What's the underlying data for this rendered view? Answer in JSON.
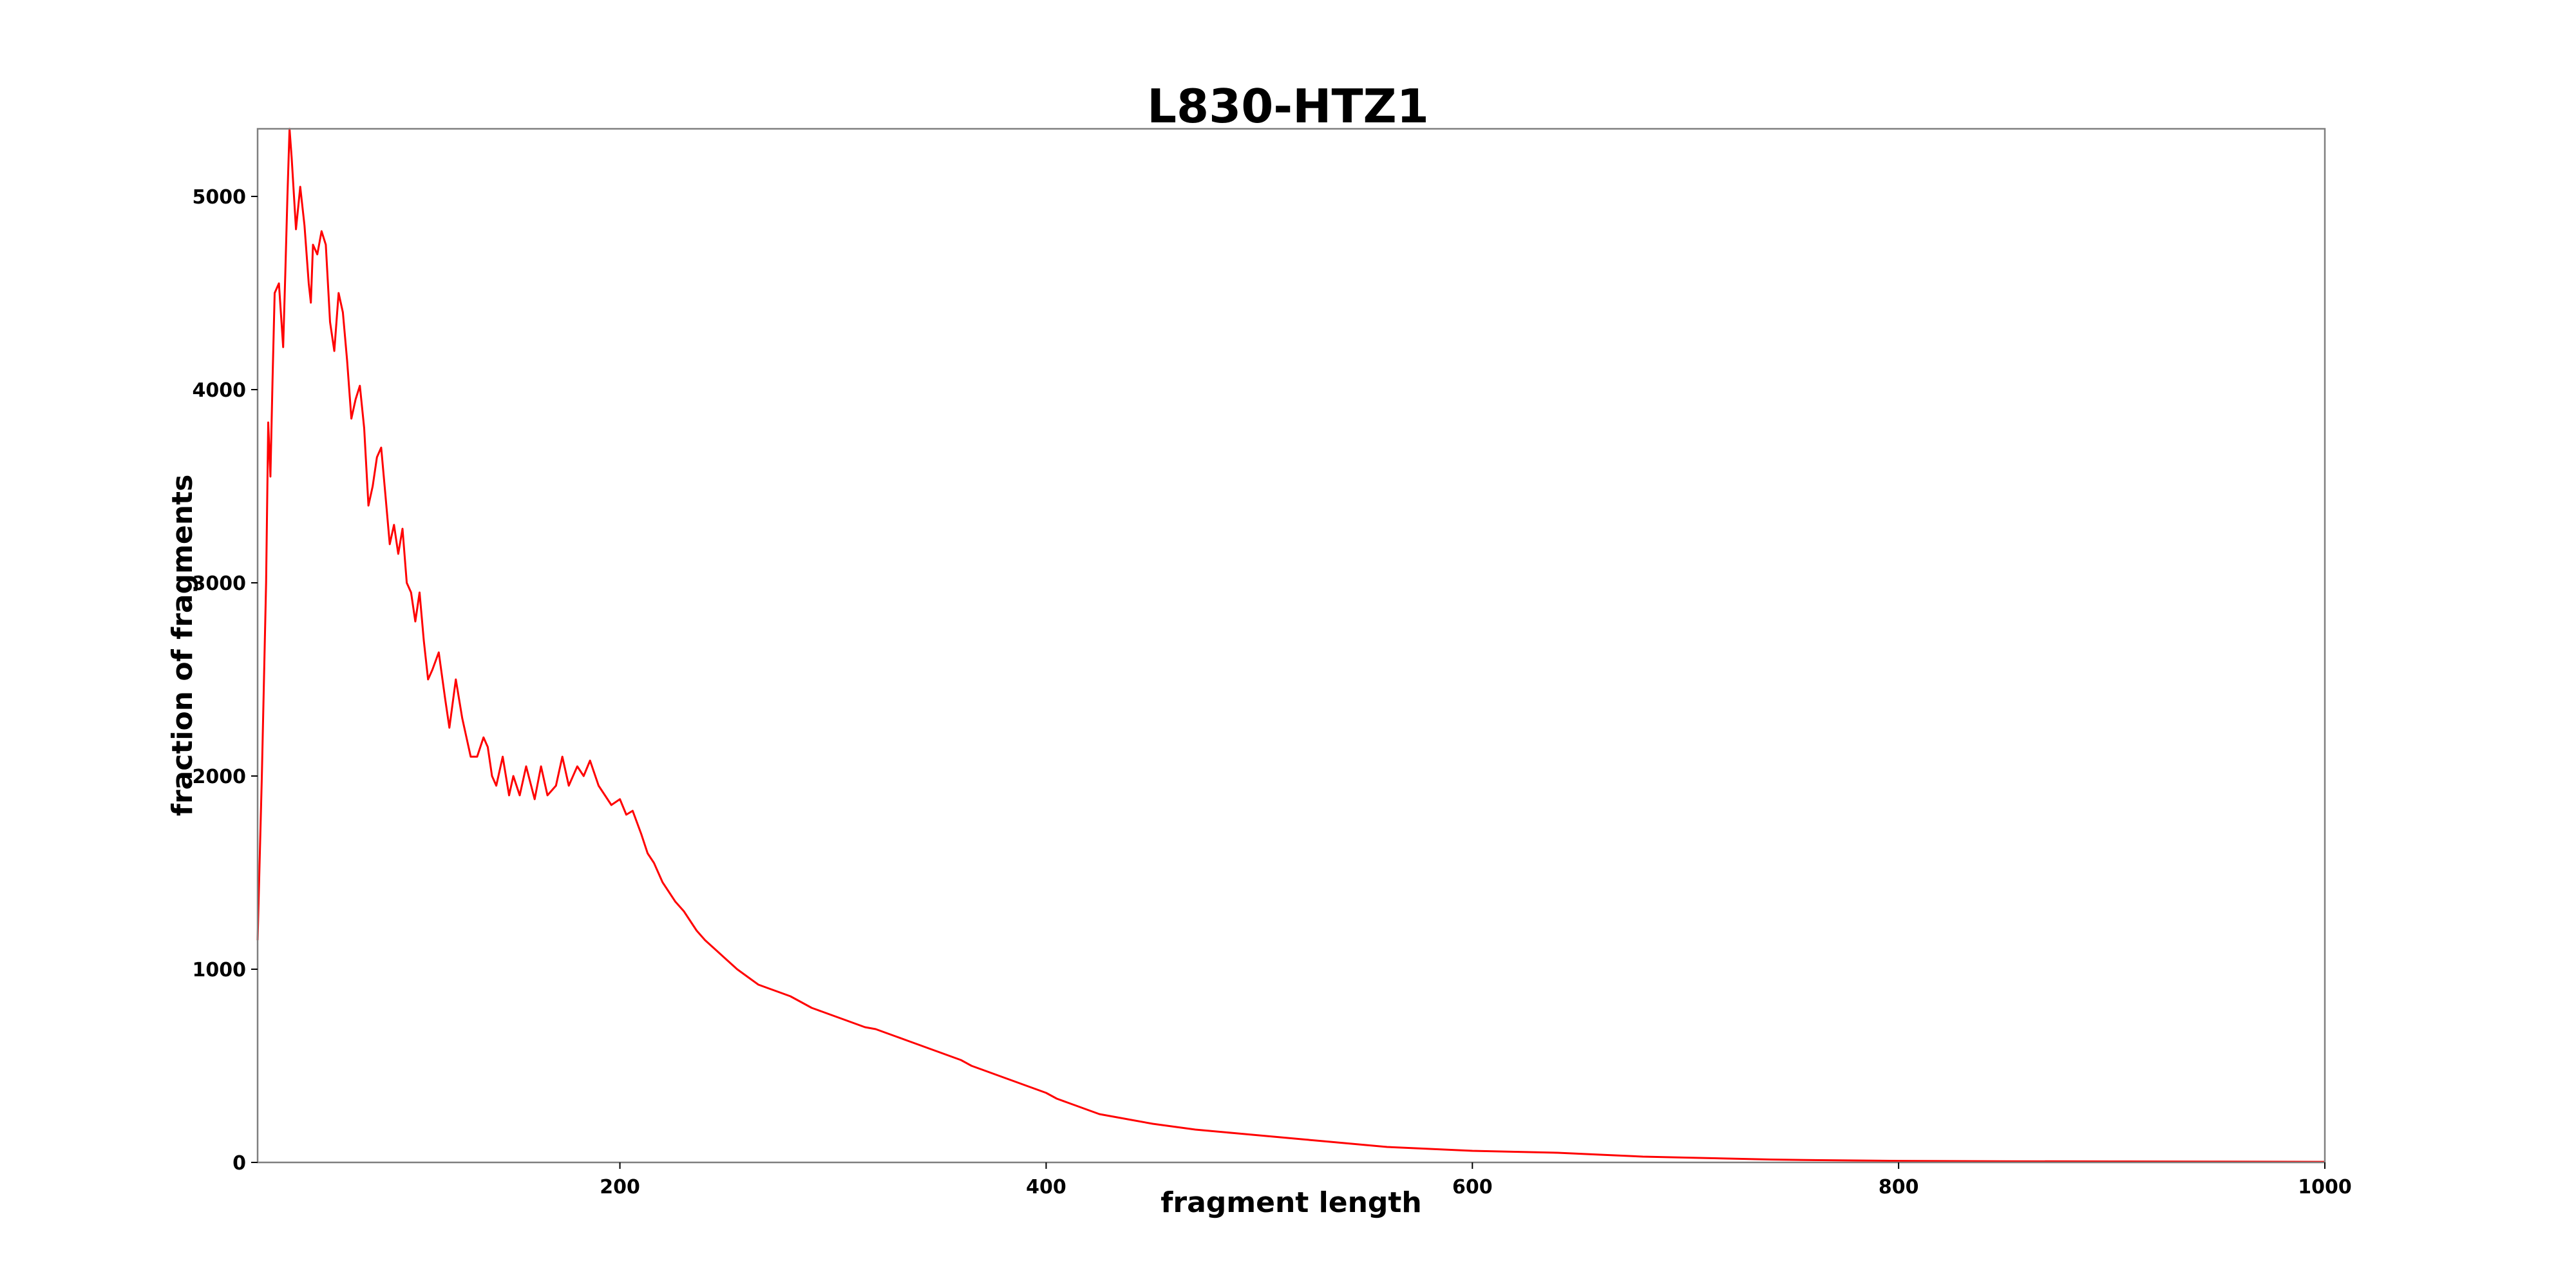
{
  "chart_data": {
    "type": "line",
    "title": "L830-HTZ1",
    "xlabel": "fragment length",
    "ylabel": "fraction of fragments",
    "xlim": [
      30,
      1000
    ],
    "ylim": [
      0,
      5350
    ],
    "x_ticks": [
      200,
      400,
      600,
      800,
      1000
    ],
    "y_ticks": [
      0,
      1000,
      2000,
      3000,
      4000,
      5000
    ],
    "grid": false,
    "legend": "none",
    "series": [
      {
        "color": "#ff0000",
        "x": [
          30,
          32,
          34,
          35,
          36,
          37,
          38,
          40,
          42,
          43,
          44,
          45,
          46,
          48,
          50,
          52,
          54,
          55,
          56,
          58,
          60,
          62,
          64,
          66,
          68,
          70,
          72,
          74,
          76,
          78,
          80,
          82,
          84,
          86,
          88,
          90,
          92,
          94,
          96,
          98,
          100,
          102,
          104,
          106,
          108,
          110,
          112,
          115,
          118,
          120,
          123,
          126,
          130,
          133,
          136,
          138,
          140,
          142,
          145,
          148,
          150,
          153,
          156,
          160,
          163,
          166,
          170,
          173,
          176,
          180,
          183,
          186,
          190,
          193,
          196,
          200,
          203,
          206,
          210,
          213,
          216,
          220,
          223,
          226,
          230,
          233,
          236,
          240,
          245,
          250,
          255,
          260,
          265,
          270,
          275,
          280,
          285,
          290,
          295,
          300,
          305,
          310,
          315,
          320,
          325,
          330,
          335,
          340,
          345,
          350,
          355,
          360,
          365,
          370,
          375,
          380,
          385,
          390,
          395,
          400,
          405,
          410,
          415,
          420,
          425,
          430,
          435,
          440,
          450,
          460,
          470,
          480,
          490,
          500,
          510,
          520,
          530,
          540,
          550,
          560,
          570,
          580,
          590,
          600,
          620,
          640,
          660,
          680,
          700,
          720,
          740,
          760,
          780,
          800,
          850,
          900,
          950,
          1000
        ],
        "y": [
          1150,
          2000,
          3000,
          3830,
          3550,
          4050,
          4500,
          4550,
          4220,
          4600,
          5000,
          5350,
          5200,
          4830,
          5050,
          4850,
          4550,
          4450,
          4750,
          4700,
          4820,
          4750,
          4350,
          4200,
          4500,
          4400,
          4150,
          3850,
          3950,
          4020,
          3800,
          3400,
          3500,
          3650,
          3700,
          3450,
          3200,
          3300,
          3150,
          3280,
          3000,
          2950,
          2800,
          2950,
          2700,
          2500,
          2550,
          2640,
          2400,
          2250,
          2500,
          2300,
          2100,
          2100,
          2200,
          2150,
          2000,
          1950,
          2100,
          1900,
          2000,
          1900,
          2050,
          1880,
          2050,
          1900,
          1950,
          2100,
          1950,
          2050,
          2000,
          2080,
          1950,
          1900,
          1850,
          1880,
          1800,
          1820,
          1700,
          1600,
          1550,
          1450,
          1400,
          1350,
          1300,
          1250,
          1200,
          1150,
          1100,
          1050,
          1000,
          960,
          920,
          900,
          880,
          860,
          830,
          800,
          780,
          760,
          740,
          720,
          700,
          690,
          670,
          650,
          630,
          610,
          590,
          570,
          550,
          530,
          500,
          480,
          460,
          440,
          420,
          400,
          380,
          360,
          330,
          310,
          290,
          270,
          250,
          240,
          230,
          220,
          200,
          185,
          170,
          160,
          150,
          140,
          130,
          120,
          110,
          100,
          90,
          80,
          75,
          70,
          65,
          60,
          55,
          50,
          40,
          30,
          25,
          20,
          15,
          12,
          10,
          8,
          6,
          5,
          4,
          3
        ]
      }
    ]
  }
}
